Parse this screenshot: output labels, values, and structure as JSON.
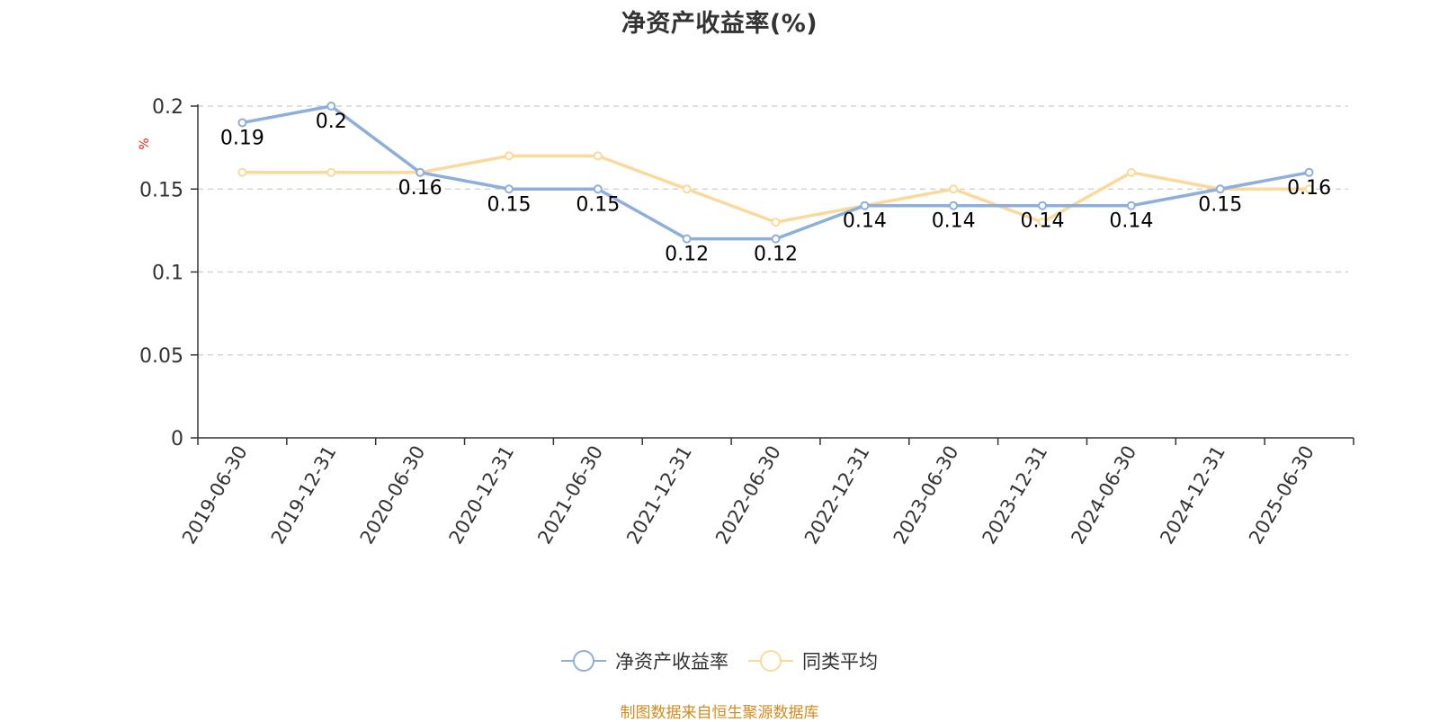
{
  "title": "净资产收益率(%)",
  "source": "制图数据来自恒生聚源数据库",
  "colors": {
    "series1": "#8eaedc",
    "series2": "#fbd99a",
    "axis": "#333333",
    "grid": "#cccccc",
    "unit_label": "#e02020",
    "source": "#d48b1e"
  },
  "chart_data": {
    "type": "line",
    "title": "净资产收益率(%)",
    "ylabel": "%",
    "xlabel": "",
    "ylim": [
      0,
      0.2
    ],
    "yticks": [
      0,
      0.05,
      0.1,
      0.15,
      0.2
    ],
    "grid": true,
    "legend_position": "bottom-center",
    "categories": [
      "2019-06-30",
      "2019-12-31",
      "2020-06-30",
      "2020-12-31",
      "2021-06-30",
      "2021-12-31",
      "2022-06-30",
      "2022-12-31",
      "2023-06-30",
      "2023-12-31",
      "2024-06-30",
      "2024-12-31",
      "2025-06-30"
    ],
    "series": [
      {
        "name": "净资产收益率",
        "color": "#8eaedc",
        "values": [
          0.19,
          0.2,
          0.16,
          0.15,
          0.15,
          0.12,
          0.12,
          0.14,
          0.14,
          0.14,
          0.14,
          0.15,
          0.16
        ],
        "labels_shown": true
      },
      {
        "name": "同类平均",
        "color": "#fbd99a",
        "values": [
          0.16,
          0.16,
          0.16,
          0.17,
          0.17,
          0.15,
          0.13,
          0.14,
          0.15,
          0.13,
          0.16,
          0.15,
          0.15
        ],
        "labels_shown": false
      }
    ]
  }
}
